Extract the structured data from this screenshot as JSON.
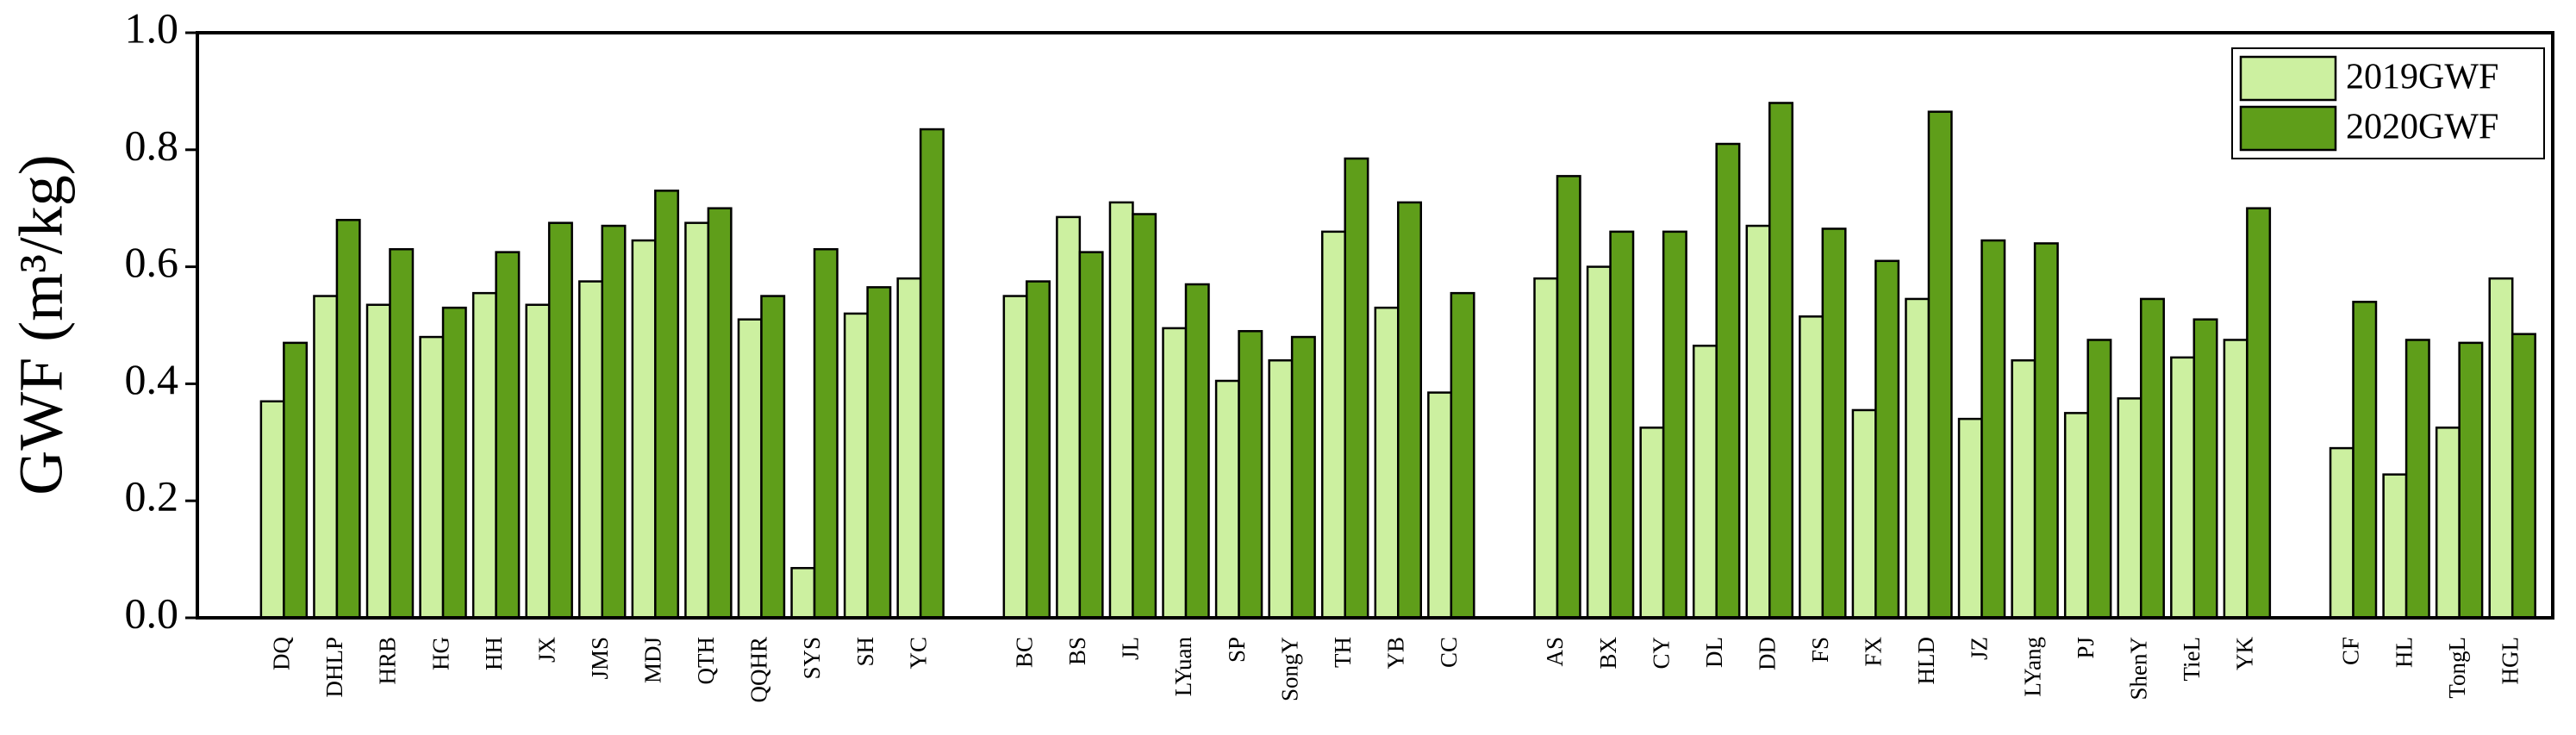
{
  "chart_data": {
    "type": "bar",
    "y_label": "GWF (m³/kg)",
    "categories": [
      "DQ",
      "DHLP",
      "HRB",
      "HG",
      "HH",
      "JX",
      "JMS",
      "MDJ",
      "QTH",
      "QQHR",
      "SYS",
      "SH",
      "YC",
      null,
      "BC",
      "BS",
      "JL",
      "LYuan",
      "SP",
      "SongY",
      "TH",
      "YB",
      "CC",
      null,
      "AS",
      "BX",
      "CY",
      "DL",
      "DD",
      "FS",
      "FX",
      "HLD",
      "JZ",
      "LYang",
      "PJ",
      "ShenY",
      "TieL",
      "YK",
      null,
      "CF",
      "HL",
      "TongL",
      "HGL"
    ],
    "series": [
      {
        "name": "2019GWF",
        "color": "#ccf0a0",
        "values": [
          0.37,
          0.55,
          0.535,
          0.48,
          0.555,
          0.535,
          0.575,
          0.645,
          0.675,
          0.51,
          0.085,
          0.52,
          0.58,
          null,
          0.55,
          0.685,
          0.71,
          0.495,
          0.405,
          0.44,
          0.66,
          0.53,
          0.385,
          null,
          0.58,
          0.6,
          0.325,
          0.465,
          0.67,
          0.515,
          0.355,
          0.545,
          0.34,
          0.44,
          0.35,
          0.375,
          0.445,
          0.475,
          null,
          0.29,
          0.245,
          0.325,
          0.58
        ]
      },
      {
        "name": "2020GWF",
        "color": "#5f9e1a",
        "values": [
          0.47,
          0.68,
          0.63,
          0.53,
          0.625,
          0.675,
          0.67,
          0.73,
          0.7,
          0.55,
          0.63,
          0.565,
          0.835,
          null,
          0.575,
          0.625,
          0.69,
          0.57,
          0.49,
          0.48,
          0.785,
          0.71,
          0.555,
          null,
          0.755,
          0.66,
          0.66,
          0.81,
          0.88,
          0.665,
          0.61,
          0.865,
          0.645,
          0.64,
          0.475,
          0.545,
          0.51,
          0.7,
          null,
          0.54,
          0.475,
          0.47,
          0.485
        ]
      }
    ],
    "ylim": [
      0,
      1
    ],
    "yticks": [
      {
        "value": 0,
        "label": "0.0"
      },
      0.2,
      0.4,
      0.6,
      0.8,
      {
        "value": 1,
        "label": "1.0"
      }
    ],
    "legend": "upper right"
  }
}
